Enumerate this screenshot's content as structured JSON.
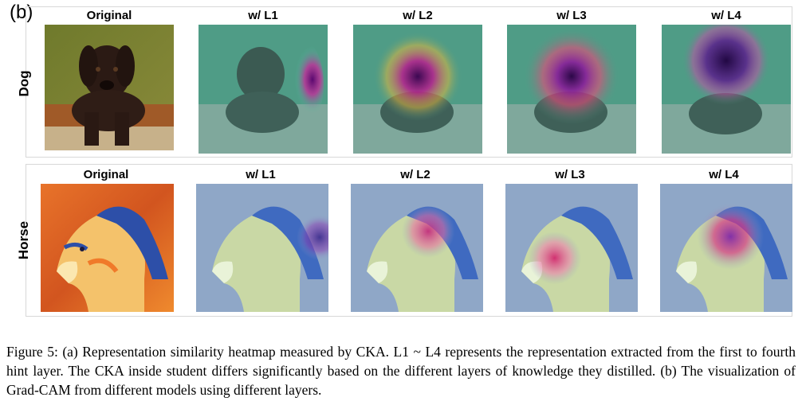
{
  "figure": {
    "panel_label": "(b)",
    "rows": [
      {
        "label": "Dog",
        "columns": [
          "Original",
          "w/ L1",
          "w/ L2",
          "w/ L3",
          "w/ L4"
        ],
        "image": "dog-painting",
        "heatmap_focus": [
          "none",
          "right-side",
          "face",
          "face",
          "head"
        ]
      },
      {
        "label": "Horse",
        "columns": [
          "Original",
          "w/ L1",
          "w/ L2",
          "w/ L3",
          "w/ L4"
        ],
        "image": "horse-painting",
        "heatmap_focus": [
          "none",
          "mane",
          "neck",
          "neck",
          "neck"
        ]
      }
    ],
    "caption": "Figure 5: (a) Representation similarity heatmap measured by CKA. L1 ~ L4 represents the representation extracted from the first to fourth hint layer. The CKA inside student differs significantly based on the different layers of knowledge they distilled. (b) The visualization of Grad-CAM from different models using different layers."
  }
}
